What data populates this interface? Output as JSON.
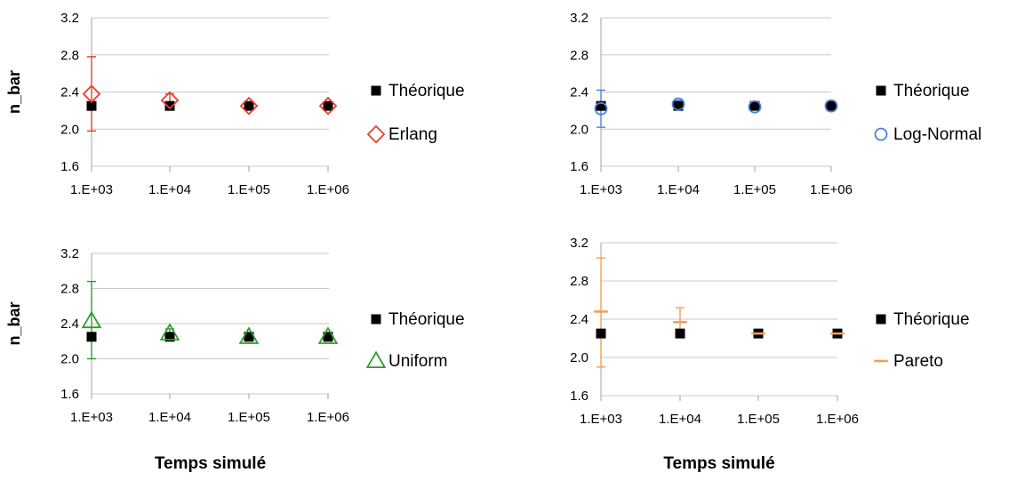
{
  "chart_data": [
    {
      "type": "scatter",
      "title": "",
      "xlabel": "",
      "ylabel": "n_bar",
      "ylim": [
        1.6,
        3.2
      ],
      "yticks": [
        "3.2",
        "2.8",
        "2.4",
        "2.0",
        "1.6"
      ],
      "x": [
        "1.E+03",
        "1.E+04",
        "1.E+05",
        "1.E+06"
      ],
      "grid": true,
      "legend_position": "right",
      "series": [
        {
          "name": "Théorique",
          "marker": "square",
          "color": "#000000",
          "values": [
            2.25,
            2.25,
            2.25,
            2.25
          ]
        },
        {
          "name": "Erlang",
          "marker": "diamond",
          "color": "#e8402c",
          "values": [
            2.38,
            2.31,
            2.25,
            2.25
          ],
          "error_low": [
            1.98,
            2.24,
            2.23,
            2.24
          ],
          "error_high": [
            2.78,
            2.38,
            2.27,
            2.26
          ]
        }
      ]
    },
    {
      "type": "scatter",
      "title": "",
      "xlabel": "",
      "ylabel": "",
      "ylim": [
        1.6,
        3.2
      ],
      "yticks": [
        "3.2",
        "2.8",
        "2.4",
        "2.0",
        "1.6"
      ],
      "x": [
        "1.E+03",
        "1.E+04",
        "1.E+05",
        "1.E+06"
      ],
      "grid": true,
      "legend_position": "right",
      "series": [
        {
          "name": "Théorique",
          "marker": "square",
          "color": "#000000",
          "values": [
            2.25,
            2.25,
            2.25,
            2.25
          ]
        },
        {
          "name": "Log-Normal",
          "marker": "circle",
          "color": "#4d7fe0",
          "values": [
            2.22,
            2.27,
            2.24,
            2.25
          ],
          "error_low": [
            2.02,
            2.22,
            2.22,
            2.23
          ],
          "error_high": [
            2.42,
            2.31,
            2.26,
            2.27
          ]
        }
      ]
    },
    {
      "type": "scatter",
      "title": "",
      "xlabel": "Temps simulé",
      "ylabel": "n_bar",
      "ylim": [
        1.6,
        3.2
      ],
      "yticks": [
        "3.2",
        "2.8",
        "2.4",
        "2.0",
        "1.6"
      ],
      "x": [
        "1.E+03",
        "1.E+04",
        "1.E+05",
        "1.E+06"
      ],
      "grid": true,
      "legend_position": "right",
      "series": [
        {
          "name": "Théorique",
          "marker": "square",
          "color": "#000000",
          "values": [
            2.25,
            2.25,
            2.25,
            2.25
          ]
        },
        {
          "name": "Uniform",
          "marker": "triangle",
          "color": "#2e9e2e",
          "values": [
            2.43,
            2.29,
            2.25,
            2.25
          ],
          "error_low": [
            2.0,
            2.24,
            2.23,
            2.23
          ],
          "error_high": [
            2.88,
            2.34,
            2.27,
            2.27
          ]
        }
      ]
    },
    {
      "type": "scatter",
      "title": "",
      "xlabel": "Temps simulé",
      "ylabel": "",
      "ylim": [
        1.6,
        3.2
      ],
      "yticks": [
        "3.2",
        "2.8",
        "2.4",
        "2.0",
        "1.6"
      ],
      "x": [
        "1.E+03",
        "1.E+04",
        "1.E+05",
        "1.E+06"
      ],
      "grid": true,
      "legend_position": "right",
      "series": [
        {
          "name": "Théorique",
          "marker": "square",
          "color": "#000000",
          "values": [
            2.25,
            2.25,
            2.25,
            2.25
          ]
        },
        {
          "name": "Pareto",
          "marker": "dash",
          "color": "#f0a05a",
          "values": [
            2.48,
            2.37,
            2.25,
            2.25
          ],
          "error_low": [
            1.9,
            2.22,
            2.22,
            2.22
          ],
          "error_high": [
            3.04,
            2.52,
            2.28,
            2.28
          ]
        }
      ]
    }
  ]
}
